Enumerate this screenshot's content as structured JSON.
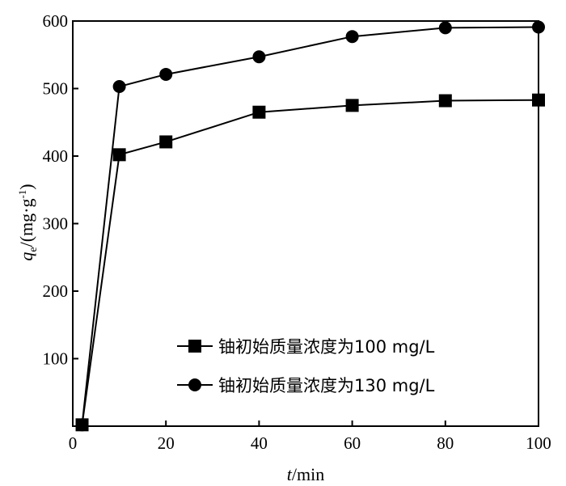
{
  "chart_data": {
    "type": "line",
    "x": [
      2,
      10,
      20,
      40,
      60,
      80,
      100
    ],
    "series": [
      {
        "name": "铀初始质量浓度为100 mg/L",
        "marker": "square",
        "values": [
          2,
          402,
          421,
          465,
          475,
          482,
          483
        ]
      },
      {
        "name": "铀初始质量浓度为130 mg/L",
        "marker": "circle",
        "values": [
          2,
          503,
          521,
          547,
          577,
          590,
          591
        ]
      }
    ],
    "xlim": [
      0,
      100
    ],
    "ylim": [
      0,
      600
    ],
    "xticks": [
      0,
      20,
      40,
      60,
      80,
      100
    ],
    "yticks": [
      100,
      200,
      300,
      400,
      500,
      600
    ],
    "xlabel": {
      "italic": "t",
      "rest": "/min"
    },
    "ylabel": {
      "italic": "q",
      "sub": "e",
      "unit": "/(mg·g",
      "sup": "-1",
      "close": ")"
    },
    "legend_position": "bottom-right",
    "grid": false,
    "line_color": "#000000",
    "marker_color": "#000000"
  }
}
